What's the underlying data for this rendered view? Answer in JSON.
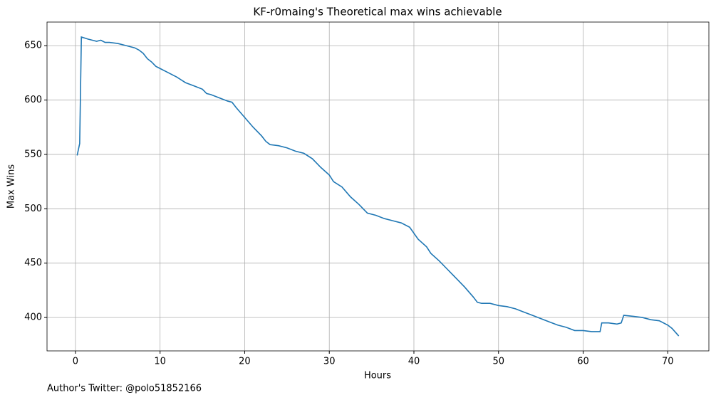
{
  "chart_data": {
    "type": "line",
    "title": "KF-r0maing's Theoretical max wins achievable",
    "x_label": "Hours",
    "y_label": "Max Wins",
    "footnote": "Author's Twitter: @polo51852166",
    "x": [
      0.2,
      0.5,
      0.7,
      1.5,
      2,
      2.5,
      3,
      3.5,
      4,
      5,
      6,
      7,
      7.5,
      8,
      8.5,
      9,
      9.5,
      10,
      11,
      12,
      13,
      14,
      15,
      15.5,
      16,
      17,
      18,
      18.5,
      19,
      20,
      21,
      22,
      22.5,
      23,
      24,
      25,
      26,
      27,
      28,
      29,
      30,
      30.5,
      31.5,
      32.5,
      33.5,
      34.5,
      35.5,
      36.5,
      37.5,
      38.5,
      39.5,
      40.5,
      41.5,
      42,
      43,
      44,
      45,
      46,
      47,
      47.5,
      48,
      49,
      50,
      51,
      52,
      53,
      54,
      55,
      56,
      57,
      58,
      59,
      60,
      61,
      62,
      62.2,
      63,
      64,
      64.5,
      64.8,
      66,
      67,
      68,
      69,
      70,
      70.5,
      71.3
    ],
    "series": [
      {
        "name": "Max Wins",
        "color": "#1f77b4",
        "values": [
          549,
          560,
          658,
          656,
          655,
          654,
          655,
          653,
          653,
          652,
          650,
          648,
          646,
          643,
          638,
          635,
          631,
          629,
          625,
          621,
          616,
          613,
          610,
          606,
          605,
          602,
          599,
          598,
          593,
          584,
          575,
          567,
          562,
          559,
          558,
          556,
          553,
          551,
          546,
          538,
          531,
          525,
          520,
          511,
          504,
          496,
          494,
          491,
          489,
          487,
          483,
          472,
          465,
          459,
          452,
          444,
          436,
          428,
          419,
          414,
          413,
          413,
          411,
          410,
          408,
          405,
          402,
          399,
          396,
          393,
          391,
          388,
          388,
          387,
          387,
          395,
          395,
          394,
          395,
          402,
          401,
          400,
          398,
          397,
          393,
          390,
          383
        ]
      }
    ],
    "xlim": [
      -3.36,
      74.86
    ],
    "ylim": [
      369.3,
      671.7
    ],
    "xticks": [
      0,
      10,
      20,
      30,
      40,
      50,
      60,
      70
    ],
    "yticks": [
      400,
      450,
      500,
      550,
      600,
      650
    ],
    "grid": true
  }
}
